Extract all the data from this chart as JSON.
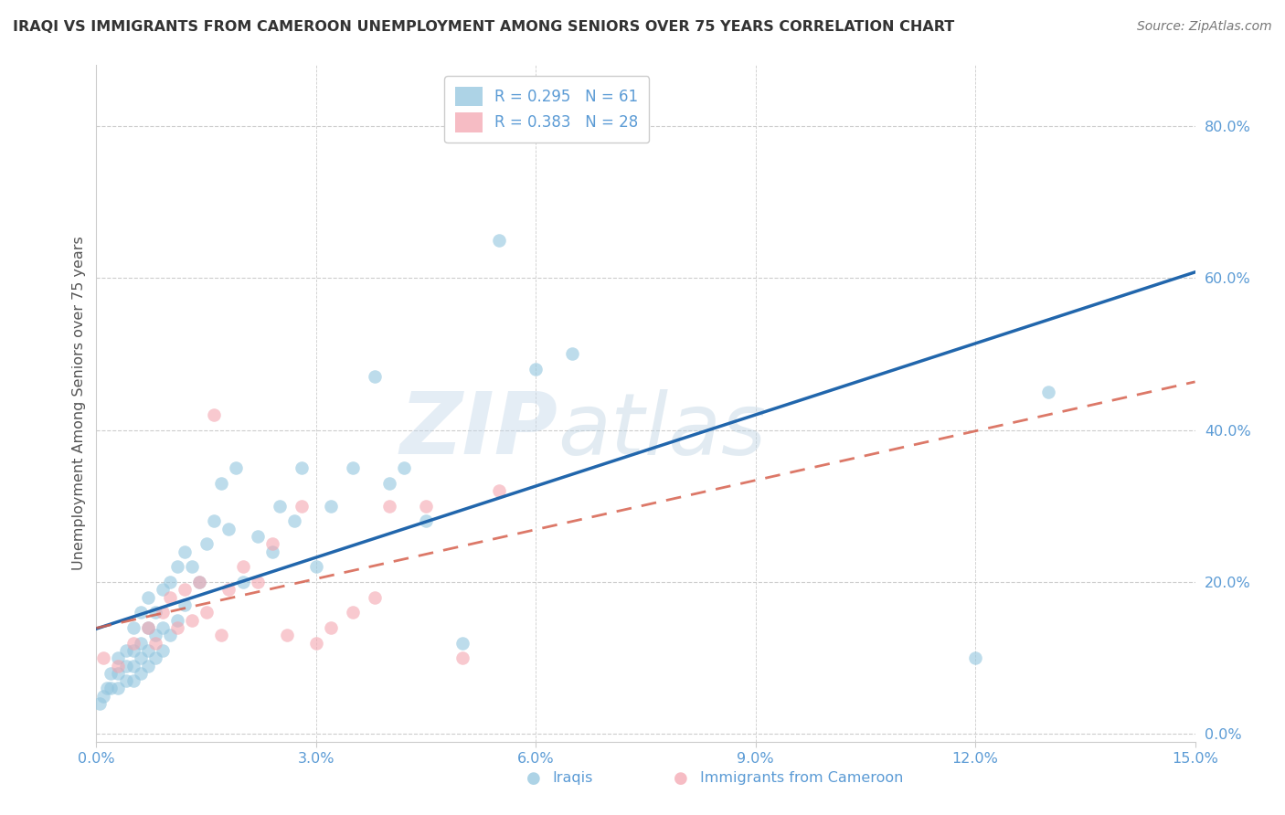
{
  "title": "IRAQI VS IMMIGRANTS FROM CAMEROON UNEMPLOYMENT AMONG SENIORS OVER 75 YEARS CORRELATION CHART",
  "source": "Source: ZipAtlas.com",
  "ylabel": "Unemployment Among Seniors over 75 years",
  "watermark_zip": "ZIP",
  "watermark_atlas": "atlas",
  "xlim": [
    0.0,
    0.15
  ],
  "ylim": [
    -0.01,
    0.88
  ],
  "xticks": [
    0.0,
    0.03,
    0.06,
    0.09,
    0.12,
    0.15
  ],
  "xticklabels": [
    "0.0%",
    "3.0%",
    "6.0%",
    "9.0%",
    "12.0%",
    "15.0%"
  ],
  "yticks_right": [
    0.0,
    0.2,
    0.4,
    0.6,
    0.8
  ],
  "yticklabels_right": [
    "0.0%",
    "20.0%",
    "40.0%",
    "60.0%",
    "80.0%"
  ],
  "legend1_R": "0.295",
  "legend1_N": "61",
  "legend2_R": "0.383",
  "legend2_N": "28",
  "color_iraqi": "#92c5de",
  "color_cameroon": "#f4a6b0",
  "color_line_iraqi": "#2166ac",
  "color_line_cameroon": "#d6604d",
  "color_ticks": "#5b9bd5",
  "color_ylabel": "#555555",
  "color_grid": "#cccccc",
  "color_title": "#333333",
  "color_source": "#777777",
  "background_color": "#ffffff",
  "iraqi_x": [
    0.0005,
    0.001,
    0.0015,
    0.002,
    0.002,
    0.003,
    0.003,
    0.003,
    0.004,
    0.004,
    0.004,
    0.005,
    0.005,
    0.005,
    0.005,
    0.006,
    0.006,
    0.006,
    0.006,
    0.007,
    0.007,
    0.007,
    0.007,
    0.008,
    0.008,
    0.008,
    0.009,
    0.009,
    0.009,
    0.01,
    0.01,
    0.011,
    0.011,
    0.012,
    0.012,
    0.013,
    0.014,
    0.015,
    0.016,
    0.017,
    0.018,
    0.019,
    0.02,
    0.022,
    0.024,
    0.025,
    0.027,
    0.028,
    0.03,
    0.032,
    0.035,
    0.038,
    0.04,
    0.042,
    0.045,
    0.05,
    0.055,
    0.06,
    0.065,
    0.12,
    0.13
  ],
  "iraqi_y": [
    0.04,
    0.05,
    0.06,
    0.06,
    0.08,
    0.06,
    0.08,
    0.1,
    0.07,
    0.09,
    0.11,
    0.07,
    0.09,
    0.11,
    0.14,
    0.08,
    0.1,
    0.12,
    0.16,
    0.09,
    0.11,
    0.14,
    0.18,
    0.1,
    0.13,
    0.16,
    0.11,
    0.14,
    0.19,
    0.13,
    0.2,
    0.15,
    0.22,
    0.17,
    0.24,
    0.22,
    0.2,
    0.25,
    0.28,
    0.33,
    0.27,
    0.35,
    0.2,
    0.26,
    0.24,
    0.3,
    0.28,
    0.35,
    0.22,
    0.3,
    0.35,
    0.47,
    0.33,
    0.35,
    0.28,
    0.12,
    0.65,
    0.48,
    0.5,
    0.1,
    0.45
  ],
  "cameroon_x": [
    0.001,
    0.003,
    0.005,
    0.007,
    0.008,
    0.009,
    0.01,
    0.011,
    0.012,
    0.013,
    0.014,
    0.015,
    0.016,
    0.017,
    0.018,
    0.02,
    0.022,
    0.024,
    0.026,
    0.028,
    0.03,
    0.032,
    0.035,
    0.038,
    0.04,
    0.045,
    0.05,
    0.055
  ],
  "cameroon_y": [
    0.1,
    0.09,
    0.12,
    0.14,
    0.12,
    0.16,
    0.18,
    0.14,
    0.19,
    0.15,
    0.2,
    0.16,
    0.42,
    0.13,
    0.19,
    0.22,
    0.2,
    0.25,
    0.13,
    0.3,
    0.12,
    0.14,
    0.16,
    0.18,
    0.3,
    0.3,
    0.1,
    0.32
  ]
}
